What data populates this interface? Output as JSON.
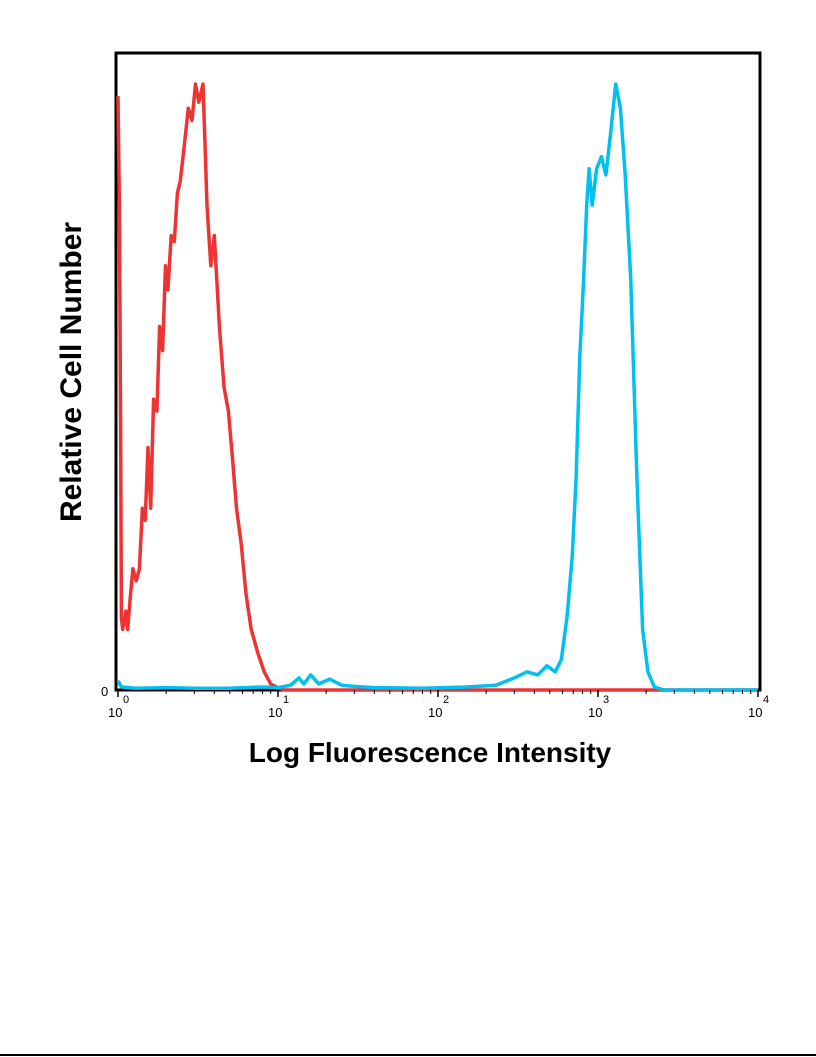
{
  "chart_data": {
    "type": "line",
    "title": "",
    "xlabel": "Log Fluorescence Intensity",
    "ylabel": "Relative Cell Number",
    "x_scale": "log",
    "xlim": [
      1,
      10000
    ],
    "ylim": [
      0,
      100
    ],
    "x_ticks": [
      {
        "value": 1,
        "base": "10",
        "exp": "0"
      },
      {
        "value": 10,
        "base": "10",
        "exp": "1"
      },
      {
        "value": 100,
        "base": "10",
        "exp": "2"
      },
      {
        "value": 1000,
        "base": "10",
        "exp": "3"
      },
      {
        "value": 10000,
        "base": "10",
        "exp": "4"
      }
    ],
    "y_zero_label": "0",
    "grid": false,
    "series": [
      {
        "color": "#ee3333",
        "points": [
          [
            1.0,
            98
          ],
          [
            1.02,
            80
          ],
          [
            1.04,
            40
          ],
          [
            1.05,
            12
          ],
          [
            1.07,
            10
          ],
          [
            1.09,
            11
          ],
          [
            1.12,
            13
          ],
          [
            1.15,
            10
          ],
          [
            1.19,
            15
          ],
          [
            1.24,
            20
          ],
          [
            1.3,
            18
          ],
          [
            1.36,
            20
          ],
          [
            1.42,
            30
          ],
          [
            1.48,
            28
          ],
          [
            1.54,
            40
          ],
          [
            1.6,
            30
          ],
          [
            1.67,
            48
          ],
          [
            1.75,
            46
          ],
          [
            1.82,
            60
          ],
          [
            1.9,
            56
          ],
          [
            1.98,
            70
          ],
          [
            2.05,
            66
          ],
          [
            2.15,
            75
          ],
          [
            2.25,
            74
          ],
          [
            2.35,
            82
          ],
          [
            2.45,
            84
          ],
          [
            2.6,
            90
          ],
          [
            2.75,
            96
          ],
          [
            2.9,
            94
          ],
          [
            3.05,
            100
          ],
          [
            3.2,
            97
          ],
          [
            3.4,
            100
          ],
          [
            3.6,
            80
          ],
          [
            3.8,
            70
          ],
          [
            4.0,
            75
          ],
          [
            4.3,
            60
          ],
          [
            4.6,
            50
          ],
          [
            4.9,
            46
          ],
          [
            5.2,
            38
          ],
          [
            5.5,
            30
          ],
          [
            5.9,
            24
          ],
          [
            6.3,
            16
          ],
          [
            6.8,
            10
          ],
          [
            7.5,
            6
          ],
          [
            8.2,
            3
          ],
          [
            9.0,
            1
          ],
          [
            9.8,
            0.5
          ],
          [
            11,
            0
          ],
          [
            200,
            0
          ],
          [
            1800,
            0
          ],
          [
            10000,
            0
          ]
        ]
      },
      {
        "color": "#00c0f0",
        "points": [
          [
            1.0,
            1.5
          ],
          [
            1.05,
            0.5
          ],
          [
            1.3,
            0.3
          ],
          [
            2,
            0.4
          ],
          [
            3,
            0.3
          ],
          [
            5,
            0.3
          ],
          [
            8,
            0.5
          ],
          [
            10,
            0.4
          ],
          [
            12,
            0.8
          ],
          [
            13.5,
            2
          ],
          [
            14.5,
            1
          ],
          [
            16,
            2.5
          ],
          [
            18,
            1
          ],
          [
            21,
            1.8
          ],
          [
            25,
            0.8
          ],
          [
            30,
            0.6
          ],
          [
            40,
            0.4
          ],
          [
            80,
            0.3
          ],
          [
            150,
            0.5
          ],
          [
            230,
            0.8
          ],
          [
            300,
            2
          ],
          [
            360,
            3
          ],
          [
            420,
            2.5
          ],
          [
            480,
            4
          ],
          [
            540,
            3
          ],
          [
            590,
            5
          ],
          [
            640,
            12
          ],
          [
            690,
            22
          ],
          [
            730,
            35
          ],
          [
            770,
            55
          ],
          [
            810,
            67
          ],
          [
            850,
            80
          ],
          [
            880,
            86
          ],
          [
            920,
            80
          ],
          [
            980,
            86
          ],
          [
            1050,
            88
          ],
          [
            1120,
            85
          ],
          [
            1200,
            92
          ],
          [
            1290,
            100
          ],
          [
            1380,
            96
          ],
          [
            1480,
            85
          ],
          [
            1600,
            68
          ],
          [
            1750,
            35
          ],
          [
            1900,
            10
          ],
          [
            2050,
            3
          ],
          [
            2250,
            0.5
          ],
          [
            2600,
            0
          ],
          [
            10000,
            0
          ]
        ]
      }
    ]
  }
}
